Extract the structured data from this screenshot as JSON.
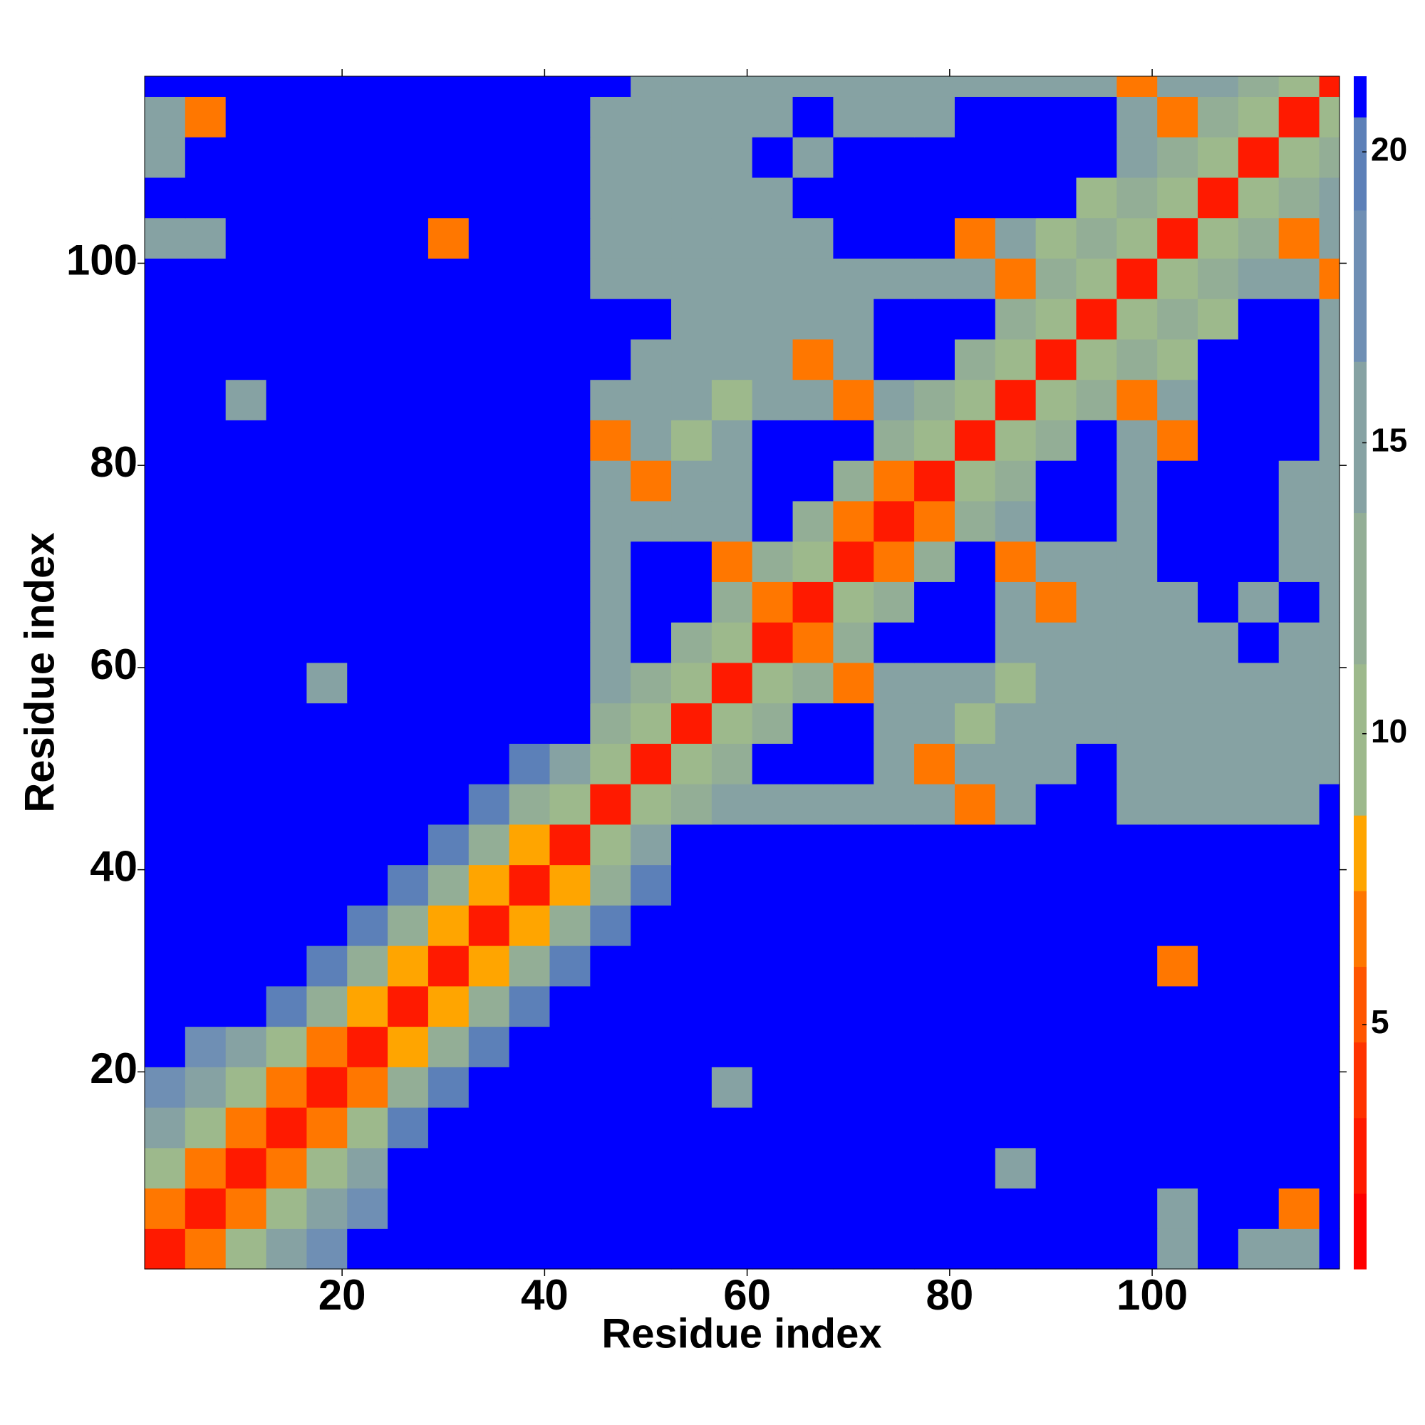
{
  "chart_data": {
    "type": "heatmap",
    "x_label": "Residue index",
    "y_label": "Residue index",
    "xlim": [
      0.5,
      118.5
    ],
    "ylim": [
      0.5,
      118.5
    ],
    "xticks": [
      20,
      40,
      60,
      80,
      100
    ],
    "yticks": [
      20,
      40,
      60,
      80,
      100
    ],
    "xbins": [
      0.5,
      4.5,
      8.5,
      12.5,
      16.5,
      20.5,
      24.5,
      28.5,
      32.5,
      36.5,
      40.5,
      44.5,
      48.5,
      52.5,
      56.5,
      60.5,
      64.5,
      68.5,
      72.5,
      76.5,
      80.5,
      84.5,
      88.5,
      92.5,
      96.5,
      100.5,
      104.5,
      108.5,
      112.5,
      116.5,
      118.5
    ],
    "ybins": [
      0.5,
      4.5,
      8.5,
      12.5,
      16.5,
      20.5,
      24.5,
      28.5,
      32.5,
      36.5,
      40.5,
      44.5,
      48.5,
      52.5,
      56.5,
      60.5,
      64.5,
      68.5,
      72.5,
      76.5,
      80.5,
      84.5,
      88.5,
      92.5,
      96.5,
      100.5,
      104.5,
      108.5,
      112.5,
      116.5,
      118.5
    ],
    "z": [
      [
        3,
        6,
        11,
        14,
        17,
        21,
        21,
        21,
        21,
        21,
        21,
        21,
        21,
        21,
        21,
        21,
        21,
        21,
        21,
        21,
        21,
        21,
        21,
        21,
        21,
        16,
        21,
        15,
        15,
        21
      ],
      [
        6,
        3,
        6,
        11,
        14,
        17,
        21,
        21,
        21,
        21,
        21,
        21,
        21,
        21,
        21,
        21,
        21,
        21,
        21,
        21,
        21,
        21,
        21,
        21,
        21,
        15,
        21,
        21,
        7,
        21
      ],
      [
        11,
        6,
        3,
        6,
        11,
        14,
        21,
        21,
        21,
        21,
        21,
        21,
        21,
        21,
        21,
        21,
        21,
        21,
        21,
        21,
        21,
        16,
        21,
        21,
        21,
        21,
        21,
        21,
        21,
        21
      ],
      [
        14,
        11,
        6,
        3,
        6,
        11,
        19,
        21,
        21,
        21,
        21,
        21,
        21,
        21,
        21,
        21,
        21,
        21,
        21,
        21,
        21,
        21,
        21,
        21,
        21,
        21,
        21,
        21,
        21,
        21
      ],
      [
        17,
        14,
        11,
        6,
        3,
        6,
        13,
        19,
        21,
        21,
        21,
        21,
        21,
        21,
        16,
        21,
        21,
        21,
        21,
        21,
        21,
        21,
        21,
        21,
        21,
        21,
        21,
        21,
        21,
        21
      ],
      [
        21,
        17,
        14,
        11,
        6,
        3,
        8,
        13,
        19,
        21,
        21,
        21,
        21,
        21,
        21,
        21,
        21,
        21,
        21,
        21,
        21,
        21,
        21,
        21,
        21,
        21,
        21,
        21,
        21,
        21
      ],
      [
        21,
        21,
        21,
        19,
        13,
        8,
        3,
        8,
        13,
        19,
        21,
        21,
        21,
        21,
        21,
        21,
        21,
        21,
        21,
        21,
        21,
        21,
        21,
        21,
        21,
        21,
        21,
        21,
        21,
        21
      ],
      [
        21,
        21,
        21,
        21,
        19,
        13,
        8,
        3,
        8,
        13,
        19,
        21,
        21,
        21,
        21,
        21,
        21,
        21,
        21,
        21,
        21,
        21,
        21,
        21,
        21,
        6,
        21,
        21,
        21,
        21
      ],
      [
        21,
        21,
        21,
        21,
        21,
        19,
        13,
        8,
        3,
        8,
        13,
        19,
        21,
        21,
        21,
        21,
        21,
        21,
        21,
        21,
        21,
        21,
        21,
        21,
        21,
        21,
        21,
        21,
        21,
        21
      ],
      [
        21,
        21,
        21,
        21,
        21,
        21,
        19,
        13,
        8,
        3,
        8,
        13,
        19,
        21,
        21,
        21,
        21,
        21,
        21,
        21,
        21,
        21,
        21,
        21,
        21,
        21,
        21,
        21,
        21,
        21
      ],
      [
        21,
        21,
        21,
        21,
        21,
        21,
        21,
        19,
        13,
        8,
        3,
        9,
        14,
        21,
        21,
        21,
        21,
        21,
        21,
        21,
        21,
        21,
        21,
        21,
        21,
        21,
        21,
        21,
        21,
        21
      ],
      [
        21,
        21,
        21,
        21,
        21,
        21,
        21,
        21,
        19,
        13,
        9,
        3,
        9,
        13,
        14,
        14,
        14,
        14,
        14,
        14,
        6,
        14,
        21,
        21,
        14,
        14,
        14,
        16,
        14,
        21
      ],
      [
        21,
        21,
        21,
        21,
        21,
        21,
        21,
        21,
        21,
        19,
        14,
        9,
        3,
        9,
        13,
        21,
        21,
        21,
        14,
        6,
        14,
        14,
        14,
        21,
        14,
        14,
        14,
        14,
        16,
        14
      ],
      [
        21,
        21,
        21,
        21,
        21,
        21,
        21,
        21,
        21,
        21,
        21,
        13,
        9,
        3,
        9,
        13,
        21,
        21,
        14,
        14,
        11,
        14,
        14,
        14,
        14,
        14,
        14,
        14,
        14,
        14
      ],
      [
        21,
        21,
        21,
        21,
        16,
        21,
        21,
        21,
        21,
        21,
        21,
        14,
        13,
        9,
        3,
        9,
        13,
        6,
        14,
        14,
        14,
        11,
        14,
        14,
        14,
        14,
        14,
        14,
        14,
        14
      ],
      [
        21,
        21,
        21,
        21,
        21,
        21,
        21,
        21,
        21,
        21,
        21,
        14,
        21,
        13,
        9,
        3,
        6,
        13,
        21,
        21,
        21,
        14,
        14,
        14,
        14,
        14,
        14,
        21,
        14,
        14
      ],
      [
        21,
        21,
        21,
        21,
        21,
        21,
        21,
        21,
        21,
        21,
        21,
        14,
        21,
        21,
        13,
        6,
        3,
        9,
        13,
        21,
        21,
        14,
        6,
        14,
        14,
        14,
        21,
        14,
        21,
        14
      ],
      [
        21,
        21,
        21,
        21,
        21,
        21,
        21,
        21,
        21,
        21,
        21,
        14,
        21,
        21,
        6,
        13,
        9,
        3,
        6,
        13,
        21,
        6,
        14,
        14,
        14,
        21,
        21,
        21,
        16,
        14
      ],
      [
        21,
        21,
        21,
        21,
        21,
        21,
        21,
        21,
        21,
        21,
        21,
        14,
        14,
        14,
        14,
        21,
        13,
        6,
        3,
        6,
        13,
        14,
        21,
        21,
        14,
        21,
        21,
        21,
        16,
        14
      ],
      [
        21,
        21,
        21,
        21,
        21,
        21,
        21,
        21,
        21,
        21,
        21,
        14,
        6,
        14,
        14,
        21,
        21,
        13,
        6,
        3,
        9,
        13,
        21,
        21,
        14,
        21,
        21,
        21,
        14,
        14
      ],
      [
        21,
        21,
        21,
        21,
        21,
        21,
        21,
        21,
        21,
        21,
        21,
        6,
        14,
        11,
        14,
        21,
        21,
        21,
        13,
        9,
        3,
        9,
        13,
        21,
        14,
        6,
        21,
        21,
        21,
        14
      ],
      [
        21,
        21,
        16,
        21,
        21,
        21,
        21,
        21,
        21,
        21,
        21,
        14,
        14,
        14,
        11,
        14,
        14,
        6,
        14,
        13,
        9,
        3,
        9,
        13,
        6,
        14,
        21,
        21,
        21,
        14
      ],
      [
        21,
        21,
        21,
        21,
        21,
        21,
        21,
        21,
        21,
        21,
        21,
        21,
        14,
        14,
        14,
        14,
        6,
        14,
        21,
        21,
        13,
        9,
        3,
        9,
        13,
        11,
        21,
        21,
        21,
        14
      ],
      [
        21,
        21,
        21,
        21,
        21,
        21,
        21,
        21,
        21,
        21,
        21,
        21,
        21,
        14,
        14,
        14,
        14,
        14,
        21,
        21,
        21,
        13,
        9,
        3,
        9,
        13,
        11,
        21,
        21,
        14
      ],
      [
        21,
        21,
        21,
        21,
        21,
        21,
        21,
        21,
        21,
        21,
        21,
        14,
        14,
        14,
        14,
        14,
        14,
        14,
        14,
        14,
        14,
        6,
        13,
        9,
        3,
        9,
        13,
        14,
        14,
        6
      ],
      [
        16,
        15,
        21,
        21,
        21,
        21,
        21,
        6,
        21,
        21,
        21,
        14,
        14,
        14,
        14,
        14,
        14,
        21,
        21,
        21,
        6,
        14,
        11,
        13,
        9,
        3,
        9,
        13,
        6,
        14
      ],
      [
        21,
        21,
        21,
        21,
        21,
        21,
        21,
        21,
        21,
        21,
        21,
        14,
        14,
        14,
        14,
        14,
        21,
        21,
        21,
        21,
        21,
        21,
        21,
        11,
        13,
        9,
        3,
        9,
        13,
        16
      ],
      [
        15,
        21,
        21,
        21,
        21,
        21,
        21,
        21,
        21,
        21,
        21,
        16,
        14,
        14,
        14,
        21,
        14,
        21,
        21,
        21,
        21,
        21,
        21,
        21,
        14,
        13,
        9,
        3,
        9,
        13
      ],
      [
        15,
        7,
        21,
        21,
        21,
        21,
        21,
        21,
        21,
        21,
        21,
        14,
        16,
        14,
        14,
        14,
        21,
        16,
        16,
        14,
        21,
        21,
        21,
        21,
        14,
        6,
        13,
        9,
        3,
        9
      ],
      [
        21,
        21,
        21,
        21,
        21,
        21,
        21,
        21,
        21,
        21,
        21,
        21,
        14,
        14,
        14,
        14,
        14,
        14,
        14,
        14,
        14,
        14,
        14,
        14,
        6,
        14,
        16,
        13,
        9,
        3
      ]
    ],
    "colorbar": {
      "zlim": [
        0.8,
        21.3
      ],
      "zticks": [
        5,
        10,
        15,
        20
      ],
      "levels": [
        0.8,
        2.1,
        3.4,
        4.7,
        6.0,
        7.3,
        8.6,
        11.2,
        13.8,
        16.4,
        19.0,
        20.6,
        21.3
      ],
      "colors": [
        "#ff0000",
        "#ff1a00",
        "#ff3300",
        "#ff5500",
        "#ff7700",
        "#ffa500",
        "#9db98c",
        "#93ae96",
        "#86a2a3",
        "#6f8fb4",
        "#5c80b8",
        "#0000ff"
      ]
    }
  }
}
